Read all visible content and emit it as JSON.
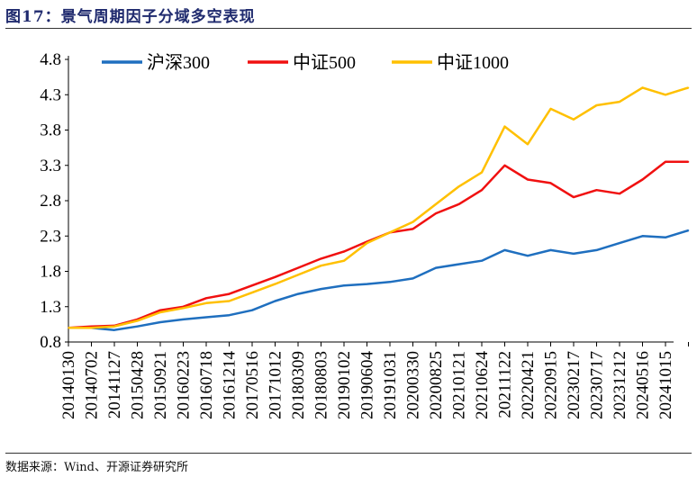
{
  "title": "图17：景气周期因子分域多空表现",
  "source": "数据来源：Wind、开源证券研究所",
  "chart_data": {
    "type": "line",
    "title": "",
    "xlabel": "",
    "ylabel": "",
    "ylim": [
      0.8,
      4.8
    ],
    "yticks": [
      "0.8",
      "1.3",
      "1.8",
      "2.3",
      "2.8",
      "3.3",
      "3.8",
      "4.3",
      "4.8"
    ],
    "grid": false,
    "legend_position": "top",
    "categories": [
      "20140130",
      "20140702",
      "20141127",
      "20150428",
      "20150921",
      "20160223",
      "20160718",
      "20161214",
      "20170516",
      "20171012",
      "20180309",
      "20180803",
      "20190102",
      "20190604",
      "20191031",
      "20200330",
      "20200825",
      "20210121",
      "20210624",
      "20211122",
      "20220421",
      "20220915",
      "20230217",
      "20230717",
      "20231212",
      "20240516",
      "20241015",
      ""
    ],
    "series": [
      {
        "name": "沪深300",
        "color": "#1f6fbf",
        "values": [
          1.0,
          1.0,
          0.97,
          1.02,
          1.08,
          1.12,
          1.15,
          1.18,
          1.25,
          1.38,
          1.48,
          1.55,
          1.6,
          1.62,
          1.65,
          1.7,
          1.85,
          1.9,
          1.95,
          2.1,
          2.02,
          2.1,
          2.05,
          2.1,
          2.2,
          2.3,
          2.28,
          2.38
        ]
      },
      {
        "name": "中证500",
        "color": "#f01010",
        "values": [
          1.0,
          1.02,
          1.03,
          1.12,
          1.25,
          1.3,
          1.42,
          1.48,
          1.6,
          1.72,
          1.85,
          1.98,
          2.08,
          2.22,
          2.35,
          2.4,
          2.62,
          2.75,
          2.95,
          3.3,
          3.1,
          3.05,
          2.85,
          2.95,
          2.9,
          3.1,
          3.35,
          3.35
        ]
      },
      {
        "name": "中证1000",
        "color": "#ffc000",
        "values": [
          1.0,
          1.0,
          1.02,
          1.1,
          1.22,
          1.28,
          1.35,
          1.38,
          1.5,
          1.62,
          1.75,
          1.88,
          1.95,
          2.2,
          2.35,
          2.5,
          2.75,
          3.0,
          3.2,
          3.85,
          3.6,
          4.1,
          3.95,
          4.15,
          4.2,
          4.4,
          4.3,
          4.4
        ]
      }
    ]
  }
}
